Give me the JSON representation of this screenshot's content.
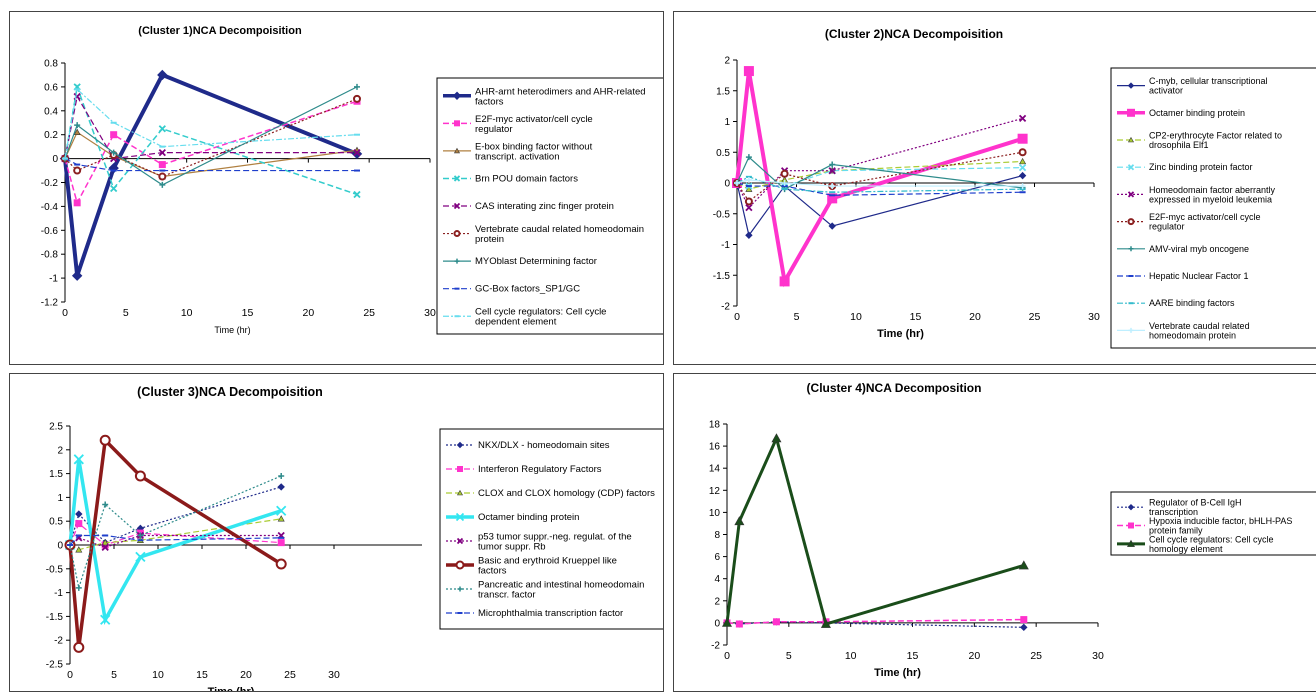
{
  "chart_data": [
    {
      "type": "line",
      "title": "(Cluster 1)NCA Decompoisition",
      "xlabel": "Time (hr)",
      "ylabel": "",
      "xlim": [
        0,
        30
      ],
      "ylim": [
        -1.2,
        0.8
      ],
      "xticks": [
        "0",
        "5",
        "10",
        "15",
        "20",
        "25",
        "30"
      ],
      "yticks": [
        "-1.2",
        "-1",
        "-0.8",
        "-0.6",
        "-0.4",
        "-0.2",
        "0",
        "0.2",
        "0.4",
        "0.6",
        "0.8"
      ],
      "x": [
        0,
        1,
        4,
        8,
        24
      ],
      "series": [
        {
          "name": "AHR-arnt heterodimers and AHR-related factors",
          "values": [
            0,
            -0.98,
            -0.08,
            0.7,
            0.04
          ],
          "color": "#1f2a8a",
          "marker": "diamond",
          "width": 4,
          "dash": ""
        },
        {
          "name": "E2F-myc activator/cell cycle regulator",
          "values": [
            0,
            -0.37,
            0.2,
            -0.05,
            0.48
          ],
          "color": "#ff33cc",
          "marker": "square",
          "width": 1.5,
          "dash": "6,3"
        },
        {
          "name": "E-box binding factor without transcript. activation",
          "values": [
            0,
            0.22,
            0.02,
            -0.15,
            0.07
          ],
          "color": "#b08040",
          "marker": "triangle",
          "width": 1.2,
          "dash": ""
        },
        {
          "name": "Brn POU domain factors",
          "values": [
            0,
            0.6,
            -0.25,
            0.25,
            -0.3
          ],
          "color": "#33cccc",
          "marker": "x",
          "width": 1.5,
          "dash": "6,3"
        },
        {
          "name": "CAS interating zinc finger protein",
          "values": [
            0,
            0.52,
            0.0,
            0.05,
            0.05
          ],
          "color": "#800080",
          "marker": "x",
          "width": 1.2,
          "dash": "6,3"
        },
        {
          "name": "Vertebrate caudal related homeodomain protein",
          "values": [
            0,
            -0.1,
            0.03,
            -0.15,
            0.5
          ],
          "color": "#8b2020",
          "marker": "circle",
          "width": 1.2,
          "dash": "2,2"
        },
        {
          "name": "MYOblast Determining factor",
          "values": [
            0,
            0.28,
            0.05,
            -0.22,
            0.6
          ],
          "color": "#2e8b8b",
          "marker": "plus",
          "width": 1.2,
          "dash": ""
        },
        {
          "name": "GC-Box factors_SP1/GC",
          "values": [
            0,
            -0.05,
            -0.1,
            -0.1,
            -0.1
          ],
          "color": "#1f3fcc",
          "marker": "dash",
          "width": 1.2,
          "dash": "6,3"
        },
        {
          "name": "Cell cycle regulators: Cell cycle dependent element",
          "values": [
            0,
            0.58,
            0.3,
            0.1,
            0.2
          ],
          "color": "#66ddee",
          "marker": "dash",
          "width": 1.2,
          "dash": "6,2,2,2"
        }
      ]
    },
    {
      "type": "line",
      "title": "(Cluster 2)NCA Decompoisition",
      "xlabel": "Time (hr)",
      "ylabel": "",
      "xlim": [
        0,
        30
      ],
      "ylim": [
        -2,
        2
      ],
      "xticks": [
        "0",
        "5",
        "10",
        "15",
        "20",
        "25",
        "30"
      ],
      "yticks": [
        "-2",
        "-1.5",
        "-1",
        "-0.5",
        "0",
        "0.5",
        "1",
        "1.5",
        "2"
      ],
      "x": [
        0,
        1,
        4,
        8,
        24
      ],
      "series": [
        {
          "name": "C-myb, cellular transcriptional activator",
          "values": [
            0,
            -0.85,
            -0.05,
            -0.7,
            0.12
          ],
          "color": "#1f2a8a",
          "marker": "diamond",
          "width": 1.2,
          "dash": ""
        },
        {
          "name": "Octamer binding protein",
          "values": [
            0,
            1.82,
            -1.6,
            -0.25,
            0.72
          ],
          "color": "#ff33cc",
          "marker": "square",
          "width": 4,
          "dash": ""
        },
        {
          "name": "CP2-erythrocyte Factor related to drosophila Elf1",
          "values": [
            0,
            -0.1,
            0.05,
            0.2,
            0.35
          ],
          "color": "#aacc33",
          "marker": "triangle",
          "width": 1.2,
          "dash": "6,3"
        },
        {
          "name": "Zinc binding protein factor",
          "values": [
            0,
            -0.05,
            -0.05,
            0.2,
            0.25
          ],
          "color": "#66ddee",
          "marker": "x",
          "width": 1.2,
          "dash": "6,3"
        },
        {
          "name": "Homeodomain factor aberrantly expressed in myeloid leukemia",
          "values": [
            0,
            -0.4,
            0.2,
            0.2,
            1.05
          ],
          "color": "#800080",
          "marker": "x",
          "width": 1.2,
          "dash": "2,2"
        },
        {
          "name": "E2F-myc activator/cell cycle regulator",
          "values": [
            0,
            -0.3,
            0.15,
            -0.05,
            0.5
          ],
          "color": "#8b2020",
          "marker": "circle",
          "width": 1.2,
          "dash": "2,2"
        },
        {
          "name": "AMV-viral myb oncogene",
          "values": [
            0,
            0.42,
            -0.1,
            0.3,
            -0.08
          ],
          "color": "#2e8b8b",
          "marker": "plus",
          "width": 1.2,
          "dash": ""
        },
        {
          "name": "Hepatic Nuclear Factor 1",
          "values": [
            0,
            -0.05,
            -0.05,
            -0.2,
            -0.15
          ],
          "color": "#1f3fcc",
          "marker": "dash",
          "width": 1.2,
          "dash": "6,3"
        },
        {
          "name": "AARE binding factors",
          "values": [
            0,
            0.1,
            -0.1,
            -0.15,
            -0.1
          ],
          "color": "#33bbcc",
          "marker": "dash",
          "width": 1.2,
          "dash": "6,2,2,2"
        },
        {
          "name": "Vertebrate caudal related homeodomain protein",
          "values": [
            0,
            0.05,
            0.0,
            -0.05,
            -0.05
          ],
          "color": "#bfefff",
          "marker": "plus",
          "width": 1.2,
          "dash": ""
        }
      ]
    },
    {
      "type": "line",
      "title": "(Cluster 3)NCA Decompoisition",
      "xlabel": "Time (hr)",
      "ylabel": "",
      "xlim": [
        0,
        40
      ],
      "ylim": [
        -2.5,
        2.5
      ],
      "xticks": [
        "0",
        "5",
        "10",
        "15",
        "20",
        "25",
        "30"
      ],
      "yticks": [
        "-2.5",
        "-2",
        "-1.5",
        "-1",
        "-0.5",
        "0",
        "0.5",
        "1",
        "1.5",
        "2",
        "2.5"
      ],
      "x": [
        0,
        1,
        4,
        8,
        24
      ],
      "series": [
        {
          "name": "NKX/DLX - homeodomain sites",
          "values": [
            0,
            0.65,
            0.05,
            0.35,
            1.22
          ],
          "color": "#1f2a8a",
          "marker": "diamond",
          "width": 1.2,
          "dash": "2,2"
        },
        {
          "name": "Interferon Regulatory Factors",
          "values": [
            0,
            0.45,
            0.0,
            0.25,
            0.05
          ],
          "color": "#ff33cc",
          "marker": "square",
          "width": 1.2,
          "dash": "6,3"
        },
        {
          "name": "CLOX and CLOX homology (CDP) factors",
          "values": [
            0,
            -0.1,
            0.05,
            0.1,
            0.55
          ],
          "color": "#aacc33",
          "marker": "triangle",
          "width": 1.2,
          "dash": "6,3"
        },
        {
          "name": "Octamer binding protein",
          "values": [
            0,
            1.8,
            -1.57,
            -0.25,
            0.72
          ],
          "color": "#33e6f0",
          "marker": "x",
          "width": 3.5,
          "dash": ""
        },
        {
          "name": "p53 tumor suppr.-neg. regulat. of the tumor suppr. Rb",
          "values": [
            0,
            0.15,
            -0.05,
            0.2,
            0.2
          ],
          "color": "#800080",
          "marker": "x",
          "width": 1.2,
          "dash": "2,2"
        },
        {
          "name": "Basic and erythroid Kruеppel like factors",
          "values": [
            0,
            -2.15,
            2.2,
            1.45,
            -0.4
          ],
          "color": "#8b1a1a",
          "marker": "circle",
          "width": 3.5,
          "dash": ""
        },
        {
          "name": "Pancreatic and intestinal homeodomain transcr. factor",
          "values": [
            0,
            -0.9,
            0.85,
            0.2,
            1.45
          ],
          "color": "#2e8b8b",
          "marker": "plus",
          "width": 1.2,
          "dash": "2,2"
        },
        {
          "name": "Microphthalmia transcription factor",
          "values": [
            0,
            0.2,
            0.2,
            0.1,
            0.15
          ],
          "color": "#1f3fcc",
          "marker": "dash",
          "width": 1.2,
          "dash": "6,3"
        }
      ]
    },
    {
      "type": "line",
      "title": "(Cluster 4)NCA Decomposition",
      "xlabel": "Time (hr)",
      "ylabel": "",
      "xlim": [
        0,
        30
      ],
      "ylim": [
        -2,
        18
      ],
      "xticks": [
        "0",
        "5",
        "10",
        "15",
        "20",
        "25",
        "30"
      ],
      "yticks": [
        "-2",
        "0",
        "2",
        "4",
        "6",
        "8",
        "10",
        "12",
        "14",
        "16",
        "18"
      ],
      "x": [
        0,
        1,
        4,
        8,
        24
      ],
      "series": [
        {
          "name": "Regulator of B-Cell IgH transcription",
          "values": [
            0,
            -0.1,
            0.1,
            0.0,
            -0.4
          ],
          "color": "#1f2a8a",
          "marker": "diamond",
          "width": 1.2,
          "dash": "2,2"
        },
        {
          "name": "Hypoxia inducible factor, bHLH-PAS protein family",
          "values": [
            0,
            -0.1,
            0.1,
            0.1,
            0.3
          ],
          "color": "#ff33cc",
          "marker": "square",
          "width": 1.5,
          "dash": "6,3"
        },
        {
          "name": "Cell cycle regulators: Cell cycle homology element",
          "values": [
            0,
            9.2,
            16.7,
            -0.1,
            5.2
          ],
          "color": "#1a4d1a",
          "marker": "triangle",
          "width": 3,
          "dash": ""
        }
      ]
    }
  ]
}
